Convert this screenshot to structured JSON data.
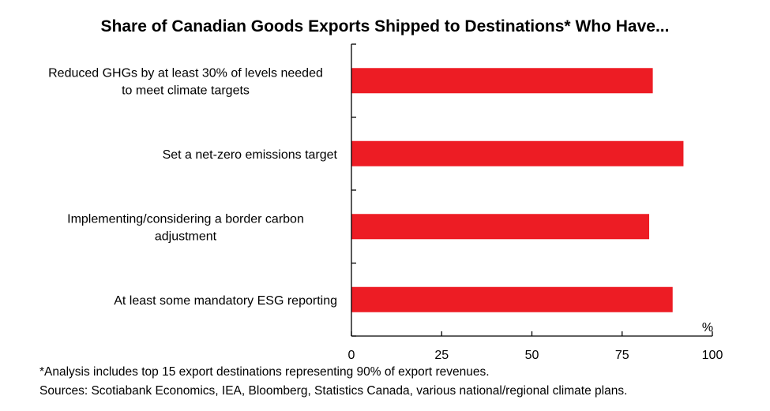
{
  "chart_data": {
    "type": "bar",
    "orientation": "horizontal",
    "title": "Share of Canadian Goods Exports Shipped to Destinations* Who Have...",
    "categories": [
      [
        "Reduced GHGs by at least 30% of levels needed",
        "to meet climate targets"
      ],
      [
        "Set a net-zero emissions target"
      ],
      [
        "Implementing/considering a border carbon",
        "adjustment"
      ],
      [
        "At least some mandatory ESG reporting"
      ]
    ],
    "values": [
      83.5,
      92,
      82.5,
      89
    ],
    "xlim": [
      0,
      100
    ],
    "xticks": [
      0,
      25,
      50,
      75,
      100
    ],
    "unit_label": "%",
    "bar_color": "#ed1c24",
    "grid": false
  },
  "footnotes": {
    "note": "*Analysis includes top 15 export destinations representing 90% of export revenues.",
    "sources": "Sources: Scotiabank Economics, IEA, Bloomberg, Statistics Canada, various national/regional climate plans."
  }
}
